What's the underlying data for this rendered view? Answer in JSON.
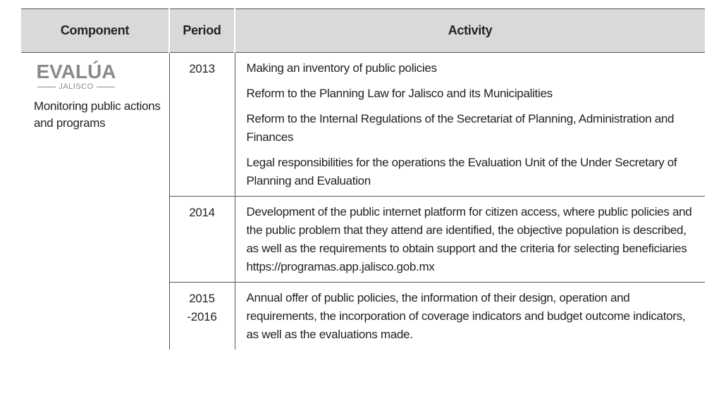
{
  "table": {
    "header": [
      "Component",
      "Period",
      "Activity"
    ],
    "component": {
      "logo": "EVALÚA",
      "logo_sub": "JALISCO",
      "description": "Monitoring public actions and programs"
    },
    "rows": [
      {
        "period": "2013",
        "activities": [
          "Making an inventory of public policies",
          "Reform to the Planning Law for Jalisco and its Municipalities",
          "Reform to the Internal Regulations of the Secretariat of Planning, Administration and Finances",
          "Legal responsibilities for the operations the Evaluation Unit of the Under Secretary of Planning and Evaluation"
        ]
      },
      {
        "period": "2014",
        "activities": [
          "Development of the public internet platform for citizen access, where public policies and the public problem that they attend are identified, the objective population is described, as well as the requirements to obtain support and the criteria for selecting beneficiaries https://programas.app.jalisco.gob.mx"
        ]
      },
      {
        "period": "2015\n-2016",
        "activities": [
          "Annual offer of public policies, the information of their design, operation and requirements, the incorporation of coverage indicators and budget outcome indicators, as well as the evaluations made."
        ]
      }
    ]
  }
}
